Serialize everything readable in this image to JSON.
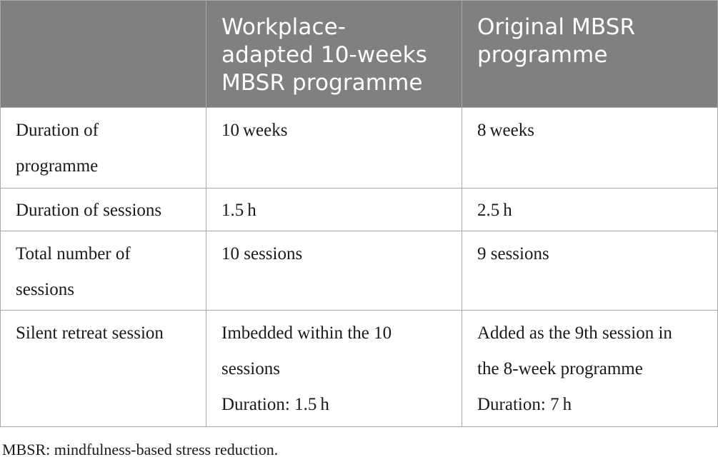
{
  "table": {
    "headers": [
      "",
      "Workplace-adapted 10-weeks MBSR programme",
      "Original MBSR programme"
    ],
    "header_lines": {
      "col2": [
        "Workplace-",
        "adapted 10-weeks",
        "MBSR programme"
      ],
      "col3": [
        "Original MBSR",
        "programme"
      ]
    },
    "rows": [
      {
        "label_lines": [
          "Duration of",
          "programme"
        ],
        "workplace_lines": [
          "10 weeks"
        ],
        "original_lines": [
          "8 weeks"
        ]
      },
      {
        "label_lines": [
          "Duration of sessions"
        ],
        "workplace_lines": [
          "1.5 h"
        ],
        "original_lines": [
          "2.5 h"
        ]
      },
      {
        "label_lines": [
          "Total number of",
          "sessions"
        ],
        "workplace_lines": [
          "10 sessions"
        ],
        "original_lines": [
          "9 sessions"
        ]
      },
      {
        "label_lines": [
          "Silent retreat session"
        ],
        "workplace_lines": [
          "Imbedded within the 10",
          "sessions",
          "Duration: 1.5 h"
        ],
        "original_lines": [
          "Added as the 9th session in",
          "the 8-week programme",
          "Duration: 7 h"
        ]
      }
    ]
  },
  "footnote": "MBSR: mindfulness-based stress reduction.",
  "colors": {
    "header_bg": "#808080",
    "header_text": "#ffffff",
    "border": "#a8a8a8",
    "body_text": "#1a1a1a"
  }
}
